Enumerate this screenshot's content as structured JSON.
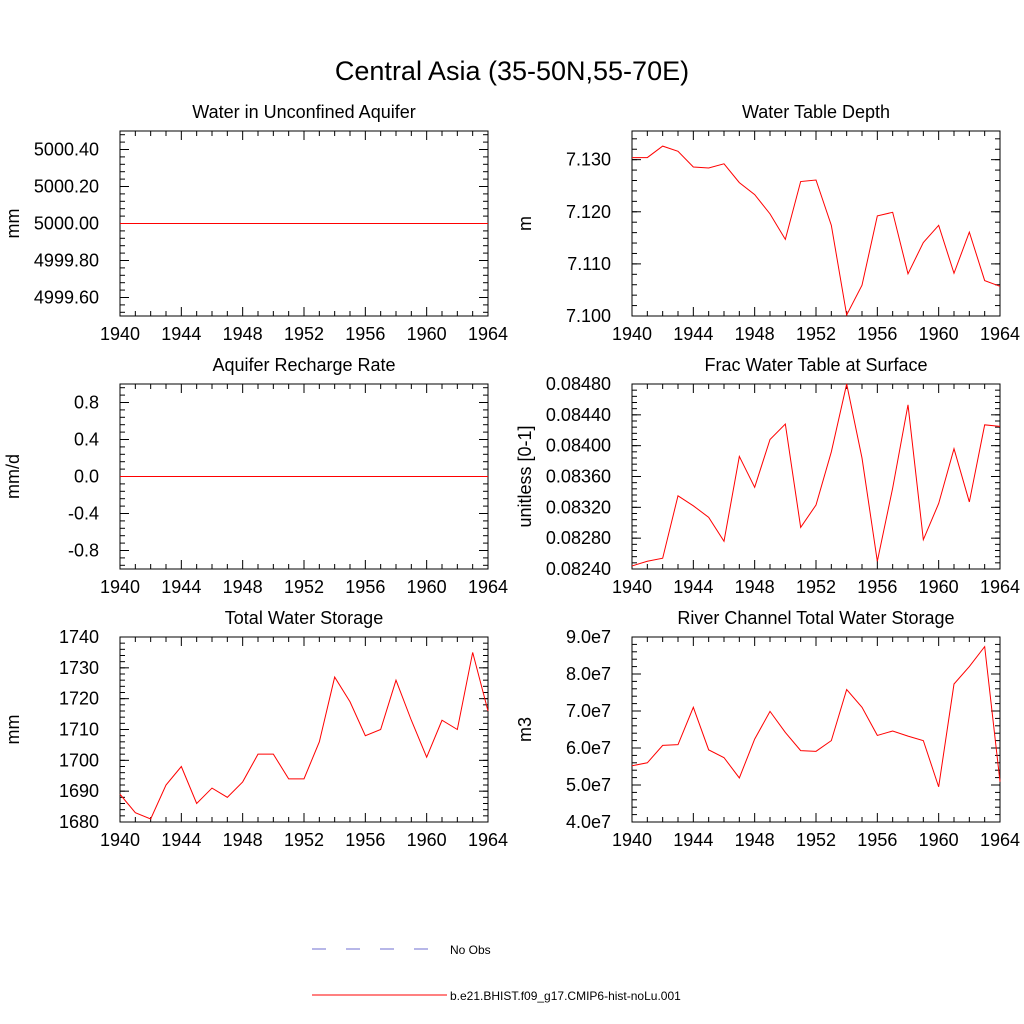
{
  "title": "Central Asia (35-50N,55-70E)",
  "colors": {
    "model": "#ff0000",
    "obs": "#6f6fd0",
    "axis": "#000000"
  },
  "legend": {
    "obs_label": "No Obs",
    "model_label": "b.e21.BHIST.f09_g17.CMIP6-hist-noLu.001"
  },
  "chart_data": [
    {
      "type": "line",
      "title": "Water in Unconfined Aquifer",
      "ylabel": "mm",
      "xlim": [
        1940,
        1964
      ],
      "ylim": [
        4999.5,
        5000.5
      ],
      "xticks": [
        "1940",
        "1944",
        "1948",
        "1952",
        "1956",
        "1960",
        "1964"
      ],
      "yticks": [
        {
          "v": 4999.6,
          "label": "4999.60"
        },
        {
          "v": 4999.8,
          "label": "4999.80"
        },
        {
          "v": 5000.0,
          "label": "5000.00"
        },
        {
          "v": 5000.2,
          "label": "5000.20"
        },
        {
          "v": 5000.4,
          "label": "5000.40"
        }
      ],
      "series": [
        {
          "name": "b.e21.BHIST.f09_g17.CMIP6-hist-noLu.001",
          "x": [
            1940,
            1964
          ],
          "values": [
            5000.0,
            5000.0
          ]
        }
      ]
    },
    {
      "type": "line",
      "title": "Water Table Depth",
      "ylabel": "m",
      "xlim": [
        1940,
        1964
      ],
      "ylim": [
        7.1,
        7.1355
      ],
      "xticks": [
        "1940",
        "1944",
        "1948",
        "1952",
        "1956",
        "1960",
        "1964"
      ],
      "yticks": [
        {
          "v": 7.1,
          "label": "7.100"
        },
        {
          "v": 7.11,
          "label": "7.110"
        },
        {
          "v": 7.12,
          "label": "7.120"
        },
        {
          "v": 7.13,
          "label": "7.130"
        }
      ],
      "series": [
        {
          "name": "b.e21.BHIST.f09_g17.CMIP6-hist-noLu.001",
          "x": [
            1940,
            1941,
            1942,
            1943,
            1944,
            1945,
            1946,
            1947,
            1948,
            1949,
            1950,
            1951,
            1952,
            1953,
            1954,
            1955,
            1956,
            1957,
            1958,
            1959,
            1960,
            1961,
            1962,
            1963,
            1964
          ],
          "values": [
            7.1304,
            7.1304,
            7.1326,
            7.1316,
            7.1286,
            7.1284,
            7.1292,
            7.1256,
            7.1233,
            7.1196,
            7.1147,
            7.1258,
            7.1261,
            7.1174,
            7.1002,
            7.1059,
            7.1192,
            7.1199,
            7.1081,
            7.1141,
            7.1174,
            7.1082,
            7.1161,
            7.1068,
            7.1057
          ]
        }
      ]
    },
    {
      "type": "line",
      "title": "Aquifer Recharge Rate",
      "ylabel": "mm/d",
      "xlim": [
        1940,
        1964
      ],
      "ylim": [
        -1.0,
        1.0
      ],
      "xticks": [
        "1940",
        "1944",
        "1948",
        "1952",
        "1956",
        "1960",
        "1964"
      ],
      "yticks": [
        {
          "v": -0.8,
          "label": "-0.8"
        },
        {
          "v": -0.4,
          "label": "-0.4"
        },
        {
          "v": 0.0,
          "label": "0.0"
        },
        {
          "v": 0.4,
          "label": "0.4"
        },
        {
          "v": 0.8,
          "label": "0.8"
        }
      ],
      "series": [
        {
          "name": "b.e21.BHIST.f09_g17.CMIP6-hist-noLu.001",
          "x": [
            1940,
            1964
          ],
          "values": [
            0.0,
            0.0
          ]
        }
      ]
    },
    {
      "type": "line",
      "title": "Frac Water Table at Surface",
      "ylabel": "unitless [0-1]",
      "xlim": [
        1940,
        1964
      ],
      "ylim": [
        0.0824,
        0.0848
      ],
      "xticks": [
        "1940",
        "1944",
        "1948",
        "1952",
        "1956",
        "1960",
        "1964"
      ],
      "yticks": [
        {
          "v": 0.0824,
          "label": "0.08240"
        },
        {
          "v": 0.0828,
          "label": "0.08280"
        },
        {
          "v": 0.0832,
          "label": "0.08320"
        },
        {
          "v": 0.0836,
          "label": "0.08360"
        },
        {
          "v": 0.084,
          "label": "0.08400"
        },
        {
          "v": 0.0844,
          "label": "0.08440"
        },
        {
          "v": 0.0848,
          "label": "0.08480"
        }
      ],
      "series": [
        {
          "name": "b.e21.BHIST.f09_g17.CMIP6-hist-noLu.001",
          "x": [
            1940,
            1941,
            1942,
            1943,
            1944,
            1945,
            1946,
            1947,
            1948,
            1949,
            1950,
            1951,
            1952,
            1953,
            1954,
            1955,
            1956,
            1957,
            1958,
            1959,
            1960,
            1961,
            1962,
            1963,
            1964
          ],
          "values": [
            0.08244,
            0.0825,
            0.08254,
            0.08335,
            0.08322,
            0.08307,
            0.08276,
            0.08386,
            0.08346,
            0.08408,
            0.08428,
            0.08294,
            0.08323,
            0.08392,
            0.0848,
            0.08384,
            0.0825,
            0.08345,
            0.08453,
            0.08278,
            0.08325,
            0.08396,
            0.08327,
            0.08427,
            0.08425
          ]
        }
      ]
    },
    {
      "type": "line",
      "title": "Total Water Storage",
      "ylabel": "mm",
      "xlim": [
        1940,
        1964
      ],
      "ylim": [
        1680,
        1740
      ],
      "xticks": [
        "1940",
        "1944",
        "1948",
        "1952",
        "1956",
        "1960",
        "1964"
      ],
      "yticks": [
        {
          "v": 1680,
          "label": "1680"
        },
        {
          "v": 1690,
          "label": "1690"
        },
        {
          "v": 1700,
          "label": "1700"
        },
        {
          "v": 1710,
          "label": "1710"
        },
        {
          "v": 1720,
          "label": "1720"
        },
        {
          "v": 1730,
          "label": "1730"
        },
        {
          "v": 1740,
          "label": "1740"
        }
      ],
      "series": [
        {
          "name": "b.e21.BHIST.f09_g17.CMIP6-hist-noLu.001",
          "x": [
            1940,
            1941,
            1942,
            1943,
            1944,
            1945,
            1946,
            1947,
            1948,
            1949,
            1950,
            1951,
            1952,
            1953,
            1954,
            1955,
            1956,
            1957,
            1958,
            1959,
            1960,
            1961,
            1962,
            1963,
            1964
          ],
          "values": [
            1689,
            1683,
            1681,
            1692,
            1698,
            1686,
            1691,
            1688,
            1693,
            1702,
            1702,
            1694,
            1694,
            1706,
            1727,
            1719,
            1708,
            1710,
            1726,
            1713,
            1701,
            1713,
            1710,
            1735,
            1716
          ]
        }
      ]
    },
    {
      "type": "line",
      "title": "River Channel Total Water Storage",
      "ylabel": "m3",
      "xlim": [
        1940,
        1964
      ],
      "ylim": [
        40000000,
        90000000
      ],
      "xticks": [
        "1940",
        "1944",
        "1948",
        "1952",
        "1956",
        "1960",
        "1964"
      ],
      "yticks": [
        {
          "v": 40000000,
          "label": "4.0e7"
        },
        {
          "v": 50000000,
          "label": "5.0e7"
        },
        {
          "v": 60000000,
          "label": "6.0e7"
        },
        {
          "v": 70000000,
          "label": "7.0e7"
        },
        {
          "v": 80000000,
          "label": "8.0e7"
        },
        {
          "v": 90000000,
          "label": "9.0e7"
        }
      ],
      "series": [
        {
          "name": "b.e21.BHIST.f09_g17.CMIP6-hist-noLu.001",
          "x": [
            1940,
            1941,
            1942,
            1943,
            1944,
            1945,
            1946,
            1947,
            1948,
            1949,
            1950,
            1951,
            1952,
            1953,
            1954,
            1955,
            1956,
            1957,
            1958,
            1959,
            1960,
            1961,
            1962,
            1963,
            1964
          ],
          "values": [
            55200000,
            56000000,
            60700000,
            60900000,
            71000000,
            59500000,
            57400000,
            51900000,
            62400000,
            69900000,
            64200000,
            59300000,
            59100000,
            62000000,
            75800000,
            71000000,
            63400000,
            64600000,
            63200000,
            62000000,
            49500000,
            77300000,
            82000000,
            87400000,
            50900000
          ]
        }
      ]
    }
  ]
}
